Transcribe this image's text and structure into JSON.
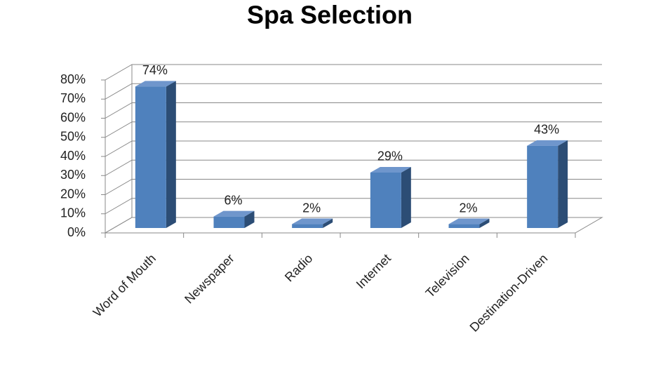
{
  "chart_data": {
    "type": "bar3d",
    "title": "Spa Selection",
    "categories": [
      "Word of Mouth",
      "Newspaper",
      "Radio",
      "Internet",
      "Television",
      "Destination-Driven"
    ],
    "values": [
      74,
      6,
      2,
      29,
      2,
      43
    ],
    "value_labels": [
      "74%",
      "6%",
      "2%",
      "29%",
      "2%",
      "43%"
    ],
    "color": "#4f81bd",
    "ylim": [
      0,
      80
    ],
    "yticks": [
      {
        "value": 0,
        "label": "0%"
      },
      {
        "value": 10,
        "label": "10%"
      },
      {
        "value": 20,
        "label": "20%"
      },
      {
        "value": 30,
        "label": "30%"
      },
      {
        "value": 40,
        "label": "40%"
      },
      {
        "value": 50,
        "label": "50%"
      },
      {
        "value": 60,
        "label": "60%"
      },
      {
        "value": 70,
        "label": "70%"
      },
      {
        "value": 80,
        "label": "80%"
      }
    ],
    "grid": true
  }
}
